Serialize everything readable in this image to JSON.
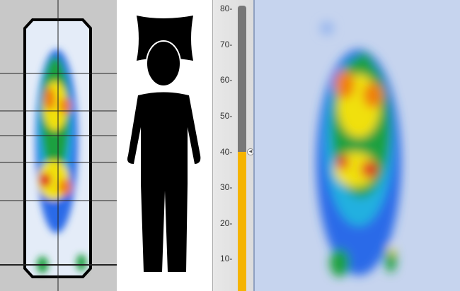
{
  "gauge": {
    "ticks": [
      "80-",
      "70-",
      "60-",
      "50-",
      "40-",
      "30-",
      "20-",
      "10-"
    ],
    "tick_values": [
      80,
      70,
      60,
      50,
      40,
      30,
      20,
      10
    ],
    "max": 80,
    "value": 40,
    "fill_color": "#f5b400",
    "track_color": "#777777"
  },
  "heatmap_colors": [
    "#2a6ae8",
    "#20b0e0",
    "#1ea040",
    "#f0e010",
    "#f08010",
    "#e03020"
  ],
  "icons": {
    "figure": "human-figure-icon",
    "marker": "pointer-left-icon"
  }
}
